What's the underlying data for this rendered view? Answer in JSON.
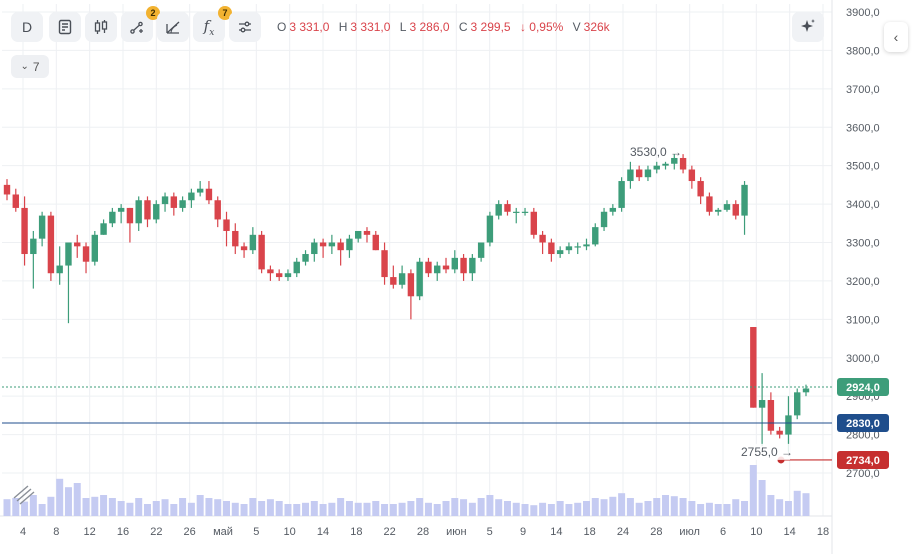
{
  "toolbar": {
    "interval_label": "D",
    "buttons": [
      {
        "name": "interval-button",
        "icon": "D"
      },
      {
        "name": "notes-icon-button",
        "icon": "notes-icon"
      },
      {
        "name": "candles-icon-button",
        "icon": "candles-icon"
      },
      {
        "name": "drawing-tools-button",
        "icon": "drawing-icon",
        "badge": "2"
      },
      {
        "name": "fibonacci-button",
        "icon": "fib-icon"
      },
      {
        "name": "indicators-button",
        "icon": "fx-icon",
        "badge": "7"
      },
      {
        "name": "settings-button",
        "icon": "sliders-icon"
      }
    ],
    "badge_drawing": "2",
    "badge_indicators": "7"
  },
  "ohlc": {
    "o_label": "O",
    "o": "3 331,0",
    "h_label": "H",
    "h": "3 331,0",
    "l_label": "L",
    "l": "3 286,0",
    "c_label": "C",
    "c": "3 299,5",
    "change": "↓ 0,95%",
    "v_label": "V",
    "v": "326k"
  },
  "indicators_collapse": "7",
  "colors": {
    "up": "#3d9d7a",
    "down": "#d9444b",
    "volume": "#c5cbf2",
    "grid": "#eef0f3",
    "ref_line": "#1f4e8c"
  },
  "chart_data": {
    "type": "candlestick",
    "y_ticks": [
      "3900,0",
      "3800,0",
      "3700,0",
      "3600,0",
      "3500,0",
      "3400,0",
      "3300,0",
      "3200,0",
      "3100,0",
      "3000,0",
      "2900,0",
      "2800,0",
      "2700,0"
    ],
    "x_labels": [
      "4",
      "8",
      "12",
      "16",
      "22",
      "26",
      "май",
      "5",
      "10",
      "14",
      "18",
      "22",
      "28",
      "июн",
      "5",
      "9",
      "14",
      "18",
      "24",
      "28",
      "июл",
      "6",
      "10",
      "14",
      "18"
    ],
    "ylim": [
      2620,
      3920
    ],
    "price_labels": [
      {
        "value": 2924,
        "text": "2924,0",
        "color": "#3d9d7a"
      },
      {
        "value": 2830,
        "text": "2830,0",
        "color": "#1f4e8c"
      },
      {
        "value": 2734,
        "text": "2734,0",
        "color": "#c62f2f"
      }
    ],
    "annotations": [
      {
        "text": "3530,0 →",
        "value": 3530
      },
      {
        "text": "2755,0 →",
        "value": 2755
      }
    ],
    "candles": [
      [
        3450,
        3465,
        3410,
        3425
      ],
      [
        3425,
        3440,
        3380,
        3390
      ],
      [
        3390,
        3420,
        3240,
        3270
      ],
      [
        3270,
        3330,
        3180,
        3310
      ],
      [
        3310,
        3380,
        3290,
        3370
      ],
      [
        3370,
        3380,
        3200,
        3220
      ],
      [
        3220,
        3290,
        3190,
        3240
      ],
      [
        3240,
        3300,
        3090,
        3300
      ],
      [
        3300,
        3320,
        3260,
        3290
      ],
      [
        3290,
        3300,
        3220,
        3250
      ],
      [
        3250,
        3330,
        3240,
        3320
      ],
      [
        3320,
        3360,
        3320,
        3350
      ],
      [
        3350,
        3390,
        3340,
        3380
      ],
      [
        3380,
        3400,
        3350,
        3390
      ],
      [
        3390,
        3390,
        3300,
        3350
      ],
      [
        3350,
        3420,
        3330,
        3410
      ],
      [
        3410,
        3420,
        3340,
        3360
      ],
      [
        3360,
        3410,
        3350,
        3400
      ],
      [
        3400,
        3430,
        3380,
        3420
      ],
      [
        3420,
        3430,
        3370,
        3390
      ],
      [
        3390,
        3420,
        3380,
        3410
      ],
      [
        3410,
        3440,
        3390,
        3430
      ],
      [
        3430,
        3460,
        3420,
        3440
      ],
      [
        3440,
        3460,
        3400,
        3410
      ],
      [
        3410,
        3420,
        3340,
        3360
      ],
      [
        3360,
        3380,
        3290,
        3330
      ],
      [
        3330,
        3350,
        3270,
        3290
      ],
      [
        3290,
        3300,
        3260,
        3280
      ],
      [
        3280,
        3340,
        3270,
        3320
      ],
      [
        3320,
        3330,
        3220,
        3230
      ],
      [
        3230,
        3240,
        3200,
        3220
      ],
      [
        3220,
        3230,
        3200,
        3210
      ],
      [
        3210,
        3230,
        3200,
        3220
      ],
      [
        3220,
        3260,
        3210,
        3250
      ],
      [
        3250,
        3280,
        3240,
        3270
      ],
      [
        3270,
        3310,
        3250,
        3300
      ],
      [
        3300,
        3310,
        3260,
        3290
      ],
      [
        3290,
        3320,
        3270,
        3300
      ],
      [
        3300,
        3310,
        3240,
        3280
      ],
      [
        3280,
        3320,
        3260,
        3310
      ],
      [
        3310,
        3330,
        3300,
        3330
      ],
      [
        3330,
        3340,
        3300,
        3320
      ],
      [
        3320,
        3330,
        3280,
        3280
      ],
      [
        3280,
        3300,
        3190,
        3210
      ],
      [
        3210,
        3240,
        3180,
        3190
      ],
      [
        3190,
        3240,
        3180,
        3220
      ],
      [
        3220,
        3230,
        3100,
        3160
      ],
      [
        3160,
        3260,
        3150,
        3250
      ],
      [
        3250,
        3260,
        3210,
        3220
      ],
      [
        3220,
        3250,
        3200,
        3240
      ],
      [
        3240,
        3260,
        3220,
        3230
      ],
      [
        3230,
        3280,
        3220,
        3260
      ],
      [
        3260,
        3270,
        3200,
        3220
      ],
      [
        3220,
        3270,
        3200,
        3260
      ],
      [
        3260,
        3300,
        3250,
        3300
      ],
      [
        3300,
        3380,
        3290,
        3370
      ],
      [
        3370,
        3410,
        3360,
        3400
      ],
      [
        3400,
        3410,
        3370,
        3380
      ],
      [
        3380,
        3390,
        3350,
        3380
      ],
      [
        3380,
        3390,
        3370,
        3380
      ],
      [
        3380,
        3390,
        3310,
        3320
      ],
      [
        3320,
        3330,
        3270,
        3300
      ],
      [
        3300,
        3310,
        3250,
        3270
      ],
      [
        3270,
        3290,
        3260,
        3280
      ],
      [
        3280,
        3300,
        3270,
        3290
      ],
      [
        3290,
        3300,
        3270,
        3290
      ],
      [
        3290,
        3310,
        3280,
        3295
      ],
      [
        3295,
        3350,
        3290,
        3340
      ],
      [
        3340,
        3390,
        3330,
        3380
      ],
      [
        3380,
        3400,
        3370,
        3390
      ],
      [
        3390,
        3470,
        3380,
        3460
      ],
      [
        3460,
        3510,
        3440,
        3490
      ],
      [
        3490,
        3500,
        3460,
        3470
      ],
      [
        3470,
        3500,
        3460,
        3490
      ],
      [
        3490,
        3510,
        3480,
        3500
      ],
      [
        3500,
        3510,
        3490,
        3505
      ],
      [
        3505,
        3530,
        3490,
        3520
      ],
      [
        3520,
        3530,
        3480,
        3490
      ],
      [
        3490,
        3500,
        3440,
        3460
      ],
      [
        3460,
        3470,
        3400,
        3420
      ],
      [
        3420,
        3430,
        3370,
        3380
      ],
      [
        3380,
        3390,
        3370,
        3385
      ],
      [
        3385,
        3410,
        3380,
        3400
      ],
      [
        3400,
        3410,
        3360,
        3370
      ],
      [
        3370,
        3460,
        3320,
        3450
      ],
      [
        3080,
        3080,
        2870,
        2870
      ],
      [
        2870,
        2960,
        2770,
        2890
      ],
      [
        2890,
        2910,
        2800,
        2810
      ],
      [
        2810,
        2820,
        2790,
        2800
      ],
      [
        2800,
        2900,
        2755,
        2850
      ],
      [
        2850,
        2920,
        2840,
        2910
      ],
      [
        2910,
        2930,
        2900,
        2920
      ]
    ],
    "volumes": [
      0.28,
      0.3,
      0.24,
      0.35,
      0.2,
      0.32,
      0.62,
      0.48,
      0.55,
      0.3,
      0.32,
      0.35,
      0.3,
      0.25,
      0.22,
      0.3,
      0.2,
      0.25,
      0.28,
      0.2,
      0.3,
      0.22,
      0.35,
      0.3,
      0.28,
      0.25,
      0.22,
      0.2,
      0.3,
      0.25,
      0.28,
      0.25,
      0.2,
      0.2,
      0.22,
      0.25,
      0.2,
      0.22,
      0.3,
      0.25,
      0.22,
      0.22,
      0.25,
      0.2,
      0.2,
      0.22,
      0.25,
      0.3,
      0.22,
      0.2,
      0.25,
      0.3,
      0.28,
      0.22,
      0.3,
      0.35,
      0.28,
      0.25,
      0.22,
      0.2,
      0.18,
      0.22,
      0.2,
      0.25,
      0.2,
      0.22,
      0.25,
      0.3,
      0.28,
      0.32,
      0.38,
      0.3,
      0.22,
      0.25,
      0.3,
      0.35,
      0.33,
      0.3,
      0.25,
      0.2,
      0.22,
      0.2,
      0.2,
      0.28,
      0.25,
      0.85,
      0.6,
      0.35,
      0.28,
      0.25,
      0.42,
      0.38
    ]
  }
}
